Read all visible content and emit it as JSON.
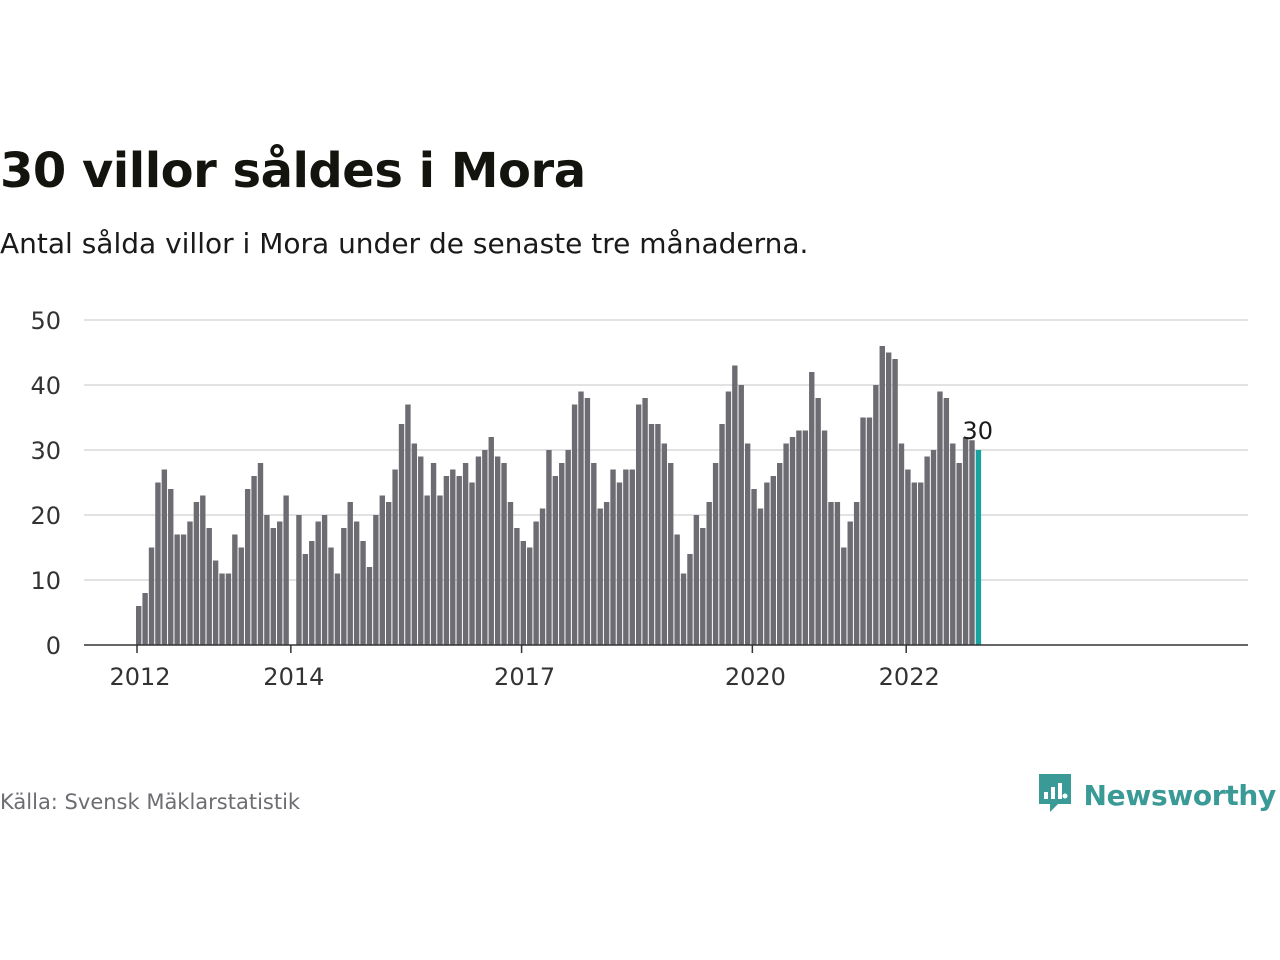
{
  "title": "30 villor såldes i Mora",
  "subtitle": "Antal sålda villor i Mora under de senaste tre månaderna.",
  "source": "Källa: Svensk Mäklarstatistik",
  "brand": {
    "name": "Newsworthy",
    "icon": "newsworthy-logo-icon",
    "color": "#3a9a96"
  },
  "colors": {
    "bar": "#6d6c72",
    "highlight": "#19a3a0",
    "grid": "#d9d9d9",
    "axis": "#333333"
  },
  "chart_data": {
    "type": "bar",
    "title": "30 villor såldes i Mora",
    "xlabel": "",
    "ylabel": "",
    "ylim": [
      0,
      50
    ],
    "yticks": [
      0,
      10,
      20,
      30,
      40,
      50
    ],
    "grid": true,
    "x_start": "2012-01",
    "x_end": "2023-03",
    "xticks": [
      {
        "label": "2012",
        "month": "2012-01"
      },
      {
        "label": "2014",
        "month": "2014-01"
      },
      {
        "label": "2017",
        "month": "2017-01"
      },
      {
        "label": "2020",
        "month": "2020-01"
      },
      {
        "label": "2022",
        "month": "2022-01"
      }
    ],
    "values": [
      6,
      8,
      15,
      25,
      27,
      24,
      17,
      17,
      19,
      22,
      23,
      18,
      13,
      11,
      11,
      17,
      15,
      24,
      26,
      28,
      20,
      18,
      19,
      23,
      null,
      20,
      14,
      16,
      19,
      20,
      15,
      11,
      18,
      22,
      19,
      16,
      12,
      20,
      23,
      22,
      27,
      34,
      37,
      31,
      29,
      23,
      28,
      23,
      26,
      27,
      26,
      28,
      25,
      29,
      30,
      32,
      29,
      28,
      22,
      18,
      16,
      15,
      19,
      21,
      30,
      26,
      28,
      30,
      37,
      39,
      38,
      28,
      21,
      22,
      27,
      25,
      27,
      27,
      37,
      38,
      34,
      34,
      31,
      28,
      17,
      11,
      14,
      20,
      18,
      22,
      28,
      34,
      39,
      43,
      40,
      31,
      24,
      21,
      25,
      26,
      28,
      31,
      32,
      33,
      33,
      42,
      38,
      33,
      22,
      22,
      15,
      19,
      22,
      35,
      35,
      40,
      46,
      45,
      44,
      31,
      27,
      25,
      25,
      29,
      30,
      39,
      38,
      31,
      28,
      32,
      31.5,
      30
    ],
    "highlight_label": "30"
  }
}
